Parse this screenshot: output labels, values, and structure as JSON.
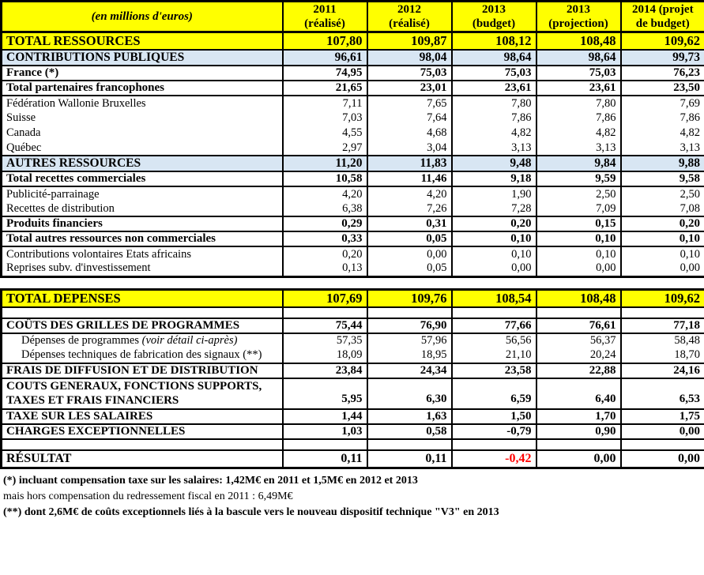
{
  "corner_label": "(en millions d'euros)",
  "columns": [
    {
      "line1": "2011",
      "line2": "(réalisé)"
    },
    {
      "line1": "2012",
      "line2": "(réalisé)"
    },
    {
      "line1": "2013",
      "line2": "(budget)"
    },
    {
      "line1": "2013",
      "line2": "(projection)"
    },
    {
      "line1": "2014 (projet",
      "line2": "de budget)"
    }
  ],
  "table1": {
    "rows": [
      {
        "style": "yellow",
        "bt": 2,
        "label": "TOTAL RESSOURCES",
        "values": [
          "107,80",
          "109,87",
          "108,12",
          "108,48",
          "109,62"
        ]
      },
      {
        "style": "blue",
        "bt": 2,
        "label": "CONTRIBUTIONS PUBLIQUES",
        "values": [
          "96,61",
          "98,04",
          "98,64",
          "98,64",
          "99,73"
        ]
      },
      {
        "style": "bold",
        "bt": 2,
        "label": "France (*)",
        "values": [
          "74,95",
          "75,03",
          "75,03",
          "75,03",
          "76,23"
        ]
      },
      {
        "style": "bold",
        "bt": 2,
        "label": "Total partenaires francophones",
        "values": [
          "21,65",
          "23,01",
          "23,61",
          "23,61",
          "23,50"
        ]
      },
      {
        "style": "normal",
        "bt": 2,
        "label": "Fédération Wallonie Bruxelles",
        "values": [
          "7,11",
          "7,65",
          "7,80",
          "7,80",
          "7,69"
        ]
      },
      {
        "style": "normal",
        "bt": 0,
        "label": "Suisse",
        "values": [
          "7,03",
          "7,64",
          "7,86",
          "7,86",
          "7,86"
        ]
      },
      {
        "style": "normal",
        "bt": 0,
        "label": "Canada",
        "values": [
          "4,55",
          "4,68",
          "4,82",
          "4,82",
          "4,82"
        ]
      },
      {
        "style": "normal",
        "bt": 0,
        "label": "Québec",
        "values": [
          "2,97",
          "3,04",
          "3,13",
          "3,13",
          "3,13"
        ]
      },
      {
        "style": "blue",
        "bt": 2,
        "label": "AUTRES RESSOURCES",
        "values": [
          "11,20",
          "11,83",
          "9,48",
          "9,84",
          "9,88"
        ]
      },
      {
        "style": "bold",
        "bt": 2,
        "label": "Total recettes commerciales",
        "values": [
          "10,58",
          "11,46",
          "9,18",
          "9,59",
          "9,58"
        ]
      },
      {
        "style": "normal",
        "bt": 2,
        "label": "Publicité-parrainage",
        "values": [
          "4,20",
          "4,20",
          "1,90",
          "2,50",
          "2,50"
        ]
      },
      {
        "style": "normal",
        "bt": 0,
        "label": "Recettes de distribution",
        "values": [
          "6,38",
          "7,26",
          "7,28",
          "7,09",
          "7,08"
        ]
      },
      {
        "style": "bold",
        "bt": 2,
        "label": "Produits financiers",
        "values": [
          "0,29",
          "0,31",
          "0,20",
          "0,15",
          "0,20"
        ]
      },
      {
        "style": "bold",
        "bt": 2,
        "label": "Total autres ressources non commerciales",
        "values": [
          "0,33",
          "0,05",
          "0,10",
          "0,10",
          "0,10"
        ]
      },
      {
        "style": "normal",
        "bt": 2,
        "label": "Contributions volontaires Etats africains",
        "values": [
          "0,20",
          "0,00",
          "0,10",
          "0,10",
          "0,10"
        ]
      },
      {
        "style": "normal",
        "bt": 0,
        "label": "Reprises subv. d'investissement",
        "values": [
          "0,13",
          "0,05",
          "0,00",
          "0,00",
          "0,00"
        ]
      }
    ]
  },
  "table2": {
    "rows": [
      {
        "style": "yellow",
        "bt": 2,
        "label": "TOTAL DEPENSES",
        "values": [
          "107,69",
          "109,76",
          "108,54",
          "108,48",
          "109,62"
        ]
      },
      {
        "style": "spacer",
        "bt": 2,
        "label": "",
        "values": [
          "",
          "",
          "",
          "",
          ""
        ]
      },
      {
        "style": "bold",
        "bt": 2,
        "label": "COÛTS DES GRILLES DE PROGRAMMES",
        "values": [
          "75,44",
          "76,90",
          "77,66",
          "76,61",
          "77,18"
        ]
      },
      {
        "style": "normal",
        "bt": 2,
        "indent": true,
        "label": "Dépenses de programmes ",
        "label_italic": "(voir détail ci-après)",
        "values": [
          "57,35",
          "57,96",
          "56,56",
          "56,37",
          "58,48"
        ]
      },
      {
        "style": "normal",
        "bt": 0,
        "indent": true,
        "label": "Dépenses techniques de fabrication des signaux (**)",
        "values": [
          "18,09",
          "18,95",
          "21,10",
          "20,24",
          "18,70"
        ]
      },
      {
        "style": "bold",
        "bt": 2,
        "label": "FRAIS DE DIFFUSION ET DE DISTRIBUTION",
        "values": [
          "23,84",
          "24,34",
          "23,58",
          "22,88",
          "24,16"
        ]
      },
      {
        "style": "tall",
        "bt": 2,
        "label": "COUTS GENERAUX, FONCTIONS SUPPORTS, TAXES ET FRAIS FINANCIERS",
        "values": [
          "5,95",
          "6,30",
          "6,59",
          "6,40",
          "6,53"
        ]
      },
      {
        "style": "bold",
        "bt": 2,
        "label": "TAXE SUR LES SALAIRES",
        "values": [
          "1,44",
          "1,63",
          "1,50",
          "1,70",
          "1,75"
        ]
      },
      {
        "style": "bold",
        "bt": 2,
        "label": "CHARGES EXCEPTIONNELLES",
        "values": [
          "1,03",
          "0,58",
          "-0,79",
          "0,90",
          "0,00"
        ]
      },
      {
        "style": "spacer",
        "bt": 2,
        "label": "",
        "values": [
          "",
          "",
          "",
          "",
          ""
        ]
      },
      {
        "style": "result",
        "bt": 2,
        "label": "RÉSULTAT",
        "values": [
          "0,11",
          "0,11",
          "-0,42",
          "0,00",
          "0,00"
        ],
        "red_cols": [
          2
        ]
      }
    ]
  },
  "footnotes": [
    "(*) incluant compensation taxe sur les salaires: 1,42M€ en 2011 et 1,5M€ en 2012 et 2013",
    "mais hors compensation du redressement fiscal en 2011 : 6,49M€",
    "(**) dont 2,6M€ de coûts exceptionnels liés à la bascule vers le nouveau dispositif technique \"V3\" en 2013"
  ],
  "colors": {
    "header_yellow": "#FFFF00",
    "section_blue": "#D8E6F3",
    "negative_red": "#FF0000"
  }
}
